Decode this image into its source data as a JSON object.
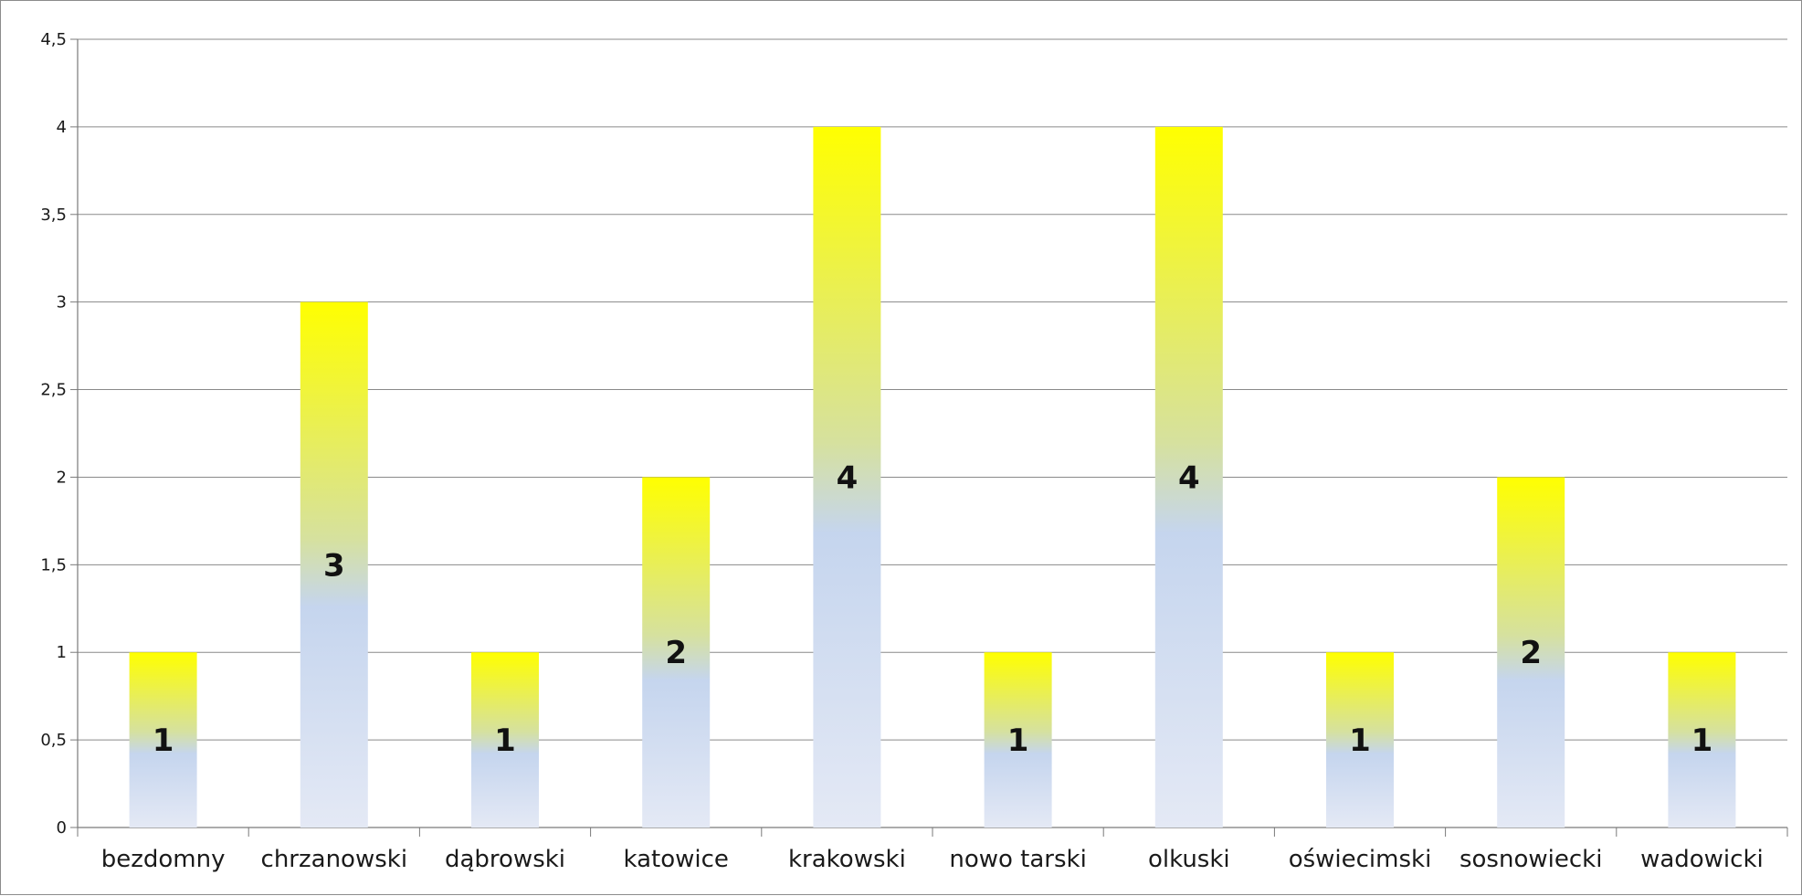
{
  "chart_data": {
    "type": "bar",
    "categories": [
      "bezdomny",
      "chrzanowski",
      "dąbrowski",
      "katowice",
      "krakowski",
      "nowo tarski",
      "olkuski",
      "oświecimski",
      "sosnowiecki",
      "wadowicki"
    ],
    "values": [
      1,
      3,
      1,
      2,
      4,
      1,
      4,
      1,
      2,
      1
    ],
    "data_labels": [
      "1",
      "3",
      "1",
      "2",
      "4",
      "1",
      "4",
      "1",
      "2",
      "1"
    ],
    "ylim": [
      0,
      4.5
    ],
    "y_ticks": [
      0,
      0.5,
      1,
      1.5,
      2,
      2.5,
      3,
      3.5,
      4,
      4.5
    ],
    "y_tick_labels": [
      "0",
      "0,5",
      "1",
      "1,5",
      "2",
      "2,5",
      "3",
      "3,5",
      "4",
      "4,5"
    ],
    "grid": true,
    "legend": "none",
    "colors": {
      "bar_top": "#ffff00",
      "bar_mid": "#c5d5ee",
      "bar_bottom": "#e4e9f5",
      "grid": "#8a8a8a"
    }
  }
}
